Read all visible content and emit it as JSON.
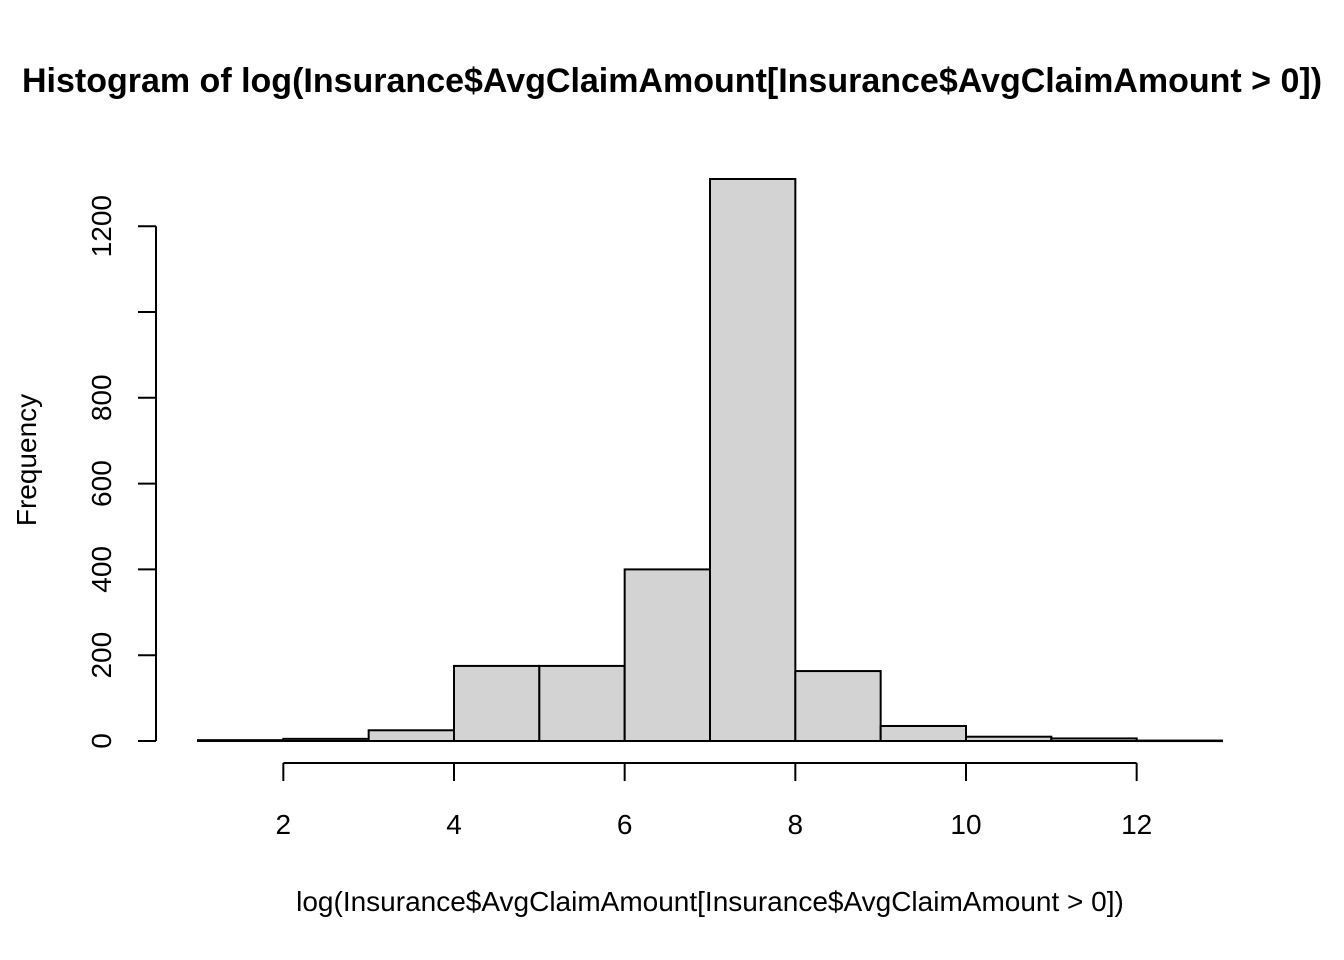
{
  "chart_data": {
    "type": "bar",
    "title": "Histogram of log(Insurance$AvgClaimAmount[Insurance$AvgClaimAmount > 0])",
    "xlabel": "log(Insurance$AvgClaimAmount[Insurance$AvgClaimAmount > 0])",
    "ylabel": "Frequency",
    "bins": [
      [
        1,
        2
      ],
      [
        2,
        3
      ],
      [
        3,
        4
      ],
      [
        4,
        5
      ],
      [
        5,
        6
      ],
      [
        6,
        7
      ],
      [
        7,
        8
      ],
      [
        8,
        9
      ],
      [
        9,
        10
      ],
      [
        10,
        11
      ],
      [
        11,
        12
      ],
      [
        12,
        13
      ]
    ],
    "values": [
      2,
      5,
      25,
      175,
      175,
      400,
      1310,
      163,
      35,
      10,
      6,
      1
    ],
    "x_ticks": [
      2,
      4,
      6,
      8,
      10,
      12
    ],
    "y_ticks": [
      0,
      200,
      400,
      600,
      800,
      1000,
      1200
    ],
    "y_tick_labels": [
      "0",
      "200",
      "400",
      "600",
      "800",
      "",
      "1200"
    ],
    "xlim": [
      1,
      13
    ],
    "ylim": [
      0,
      1310
    ],
    "grid": false,
    "bar_color": "#d3d3d3"
  }
}
